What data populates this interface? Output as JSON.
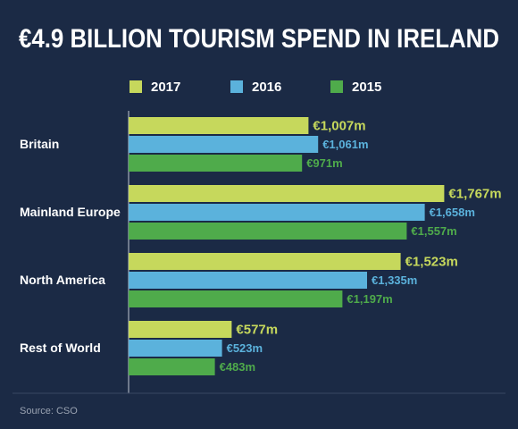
{
  "chart_data": {
    "type": "bar",
    "orientation": "horizontal",
    "title": "€4.9 BILLION TOURISM SPEND IN IRELAND",
    "categories": [
      "Britain",
      "Mainland Europe",
      "North America",
      "Rest of World"
    ],
    "series": [
      {
        "name": "2017",
        "color": "#c6d85c",
        "values": [
          1007,
          1767,
          1523,
          577
        ],
        "value_labels": [
          "€1,007m",
          "€1,767m",
          "€1,523m",
          "€577m"
        ]
      },
      {
        "name": "2016",
        "color": "#5bb2dc",
        "values": [
          1061,
          1658,
          1335,
          523
        ],
        "value_labels": [
          "€1,061m",
          "€1,658m",
          "€1,335m",
          "€523m"
        ]
      },
      {
        "name": "2015",
        "color": "#4fab4b",
        "values": [
          971,
          1557,
          1197,
          483
        ],
        "value_labels": [
          "€971m",
          "€1,557m",
          "€1,197m",
          "€483m"
        ]
      }
    ],
    "source": "Source: CSO"
  }
}
